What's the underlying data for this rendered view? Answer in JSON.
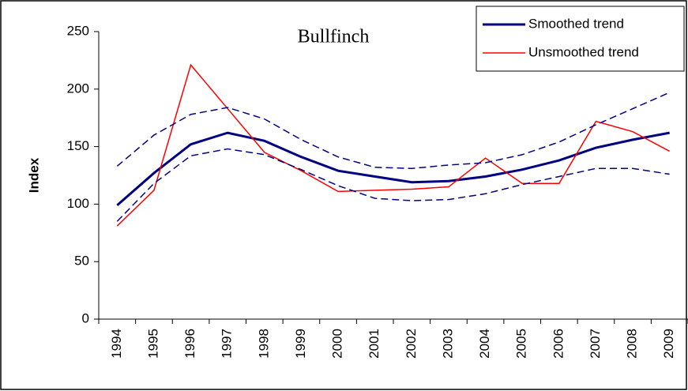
{
  "chart_data": {
    "type": "line",
    "title": "Bullfinch",
    "y_label": "Index",
    "categories": [
      "1994",
      "1995",
      "1996",
      "1997",
      "1998",
      "1999",
      "2000",
      "2001",
      "2002",
      "2003",
      "2004",
      "2005",
      "2006",
      "2007",
      "2008",
      "2009"
    ],
    "series": [
      {
        "name": "Smoothed trend",
        "color": "#000080",
        "width": 3,
        "dashed": false,
        "values": [
          99,
          127,
          152,
          162,
          155,
          141,
          129,
          124,
          119,
          120,
          124,
          130,
          138,
          149,
          156,
          162
        ]
      },
      {
        "name": "Unsmoothed trend",
        "color": "#ff0000",
        "width": 1.5,
        "dashed": false,
        "values": [
          81,
          112,
          221,
          183,
          145,
          129,
          111,
          112,
          113,
          115,
          140,
          118,
          118,
          172,
          163,
          146
        ]
      },
      {
        "color": "#000080",
        "width": 1.5,
        "dashed": true,
        "values": [
          133,
          160,
          178,
          184,
          174,
          156,
          141,
          132,
          131,
          134,
          136,
          143,
          154,
          169,
          183,
          197
        ]
      },
      {
        "color": "#000080",
        "width": 1.5,
        "dashed": true,
        "values": [
          85,
          118,
          142,
          148,
          143,
          130,
          116,
          105,
          103,
          104,
          109,
          117,
          124,
          131,
          131,
          126
        ]
      }
    ],
    "ylim": [
      0,
      250
    ],
    "yticks": [
      0,
      50,
      100,
      150,
      200,
      250
    ],
    "legend": "top-right"
  }
}
